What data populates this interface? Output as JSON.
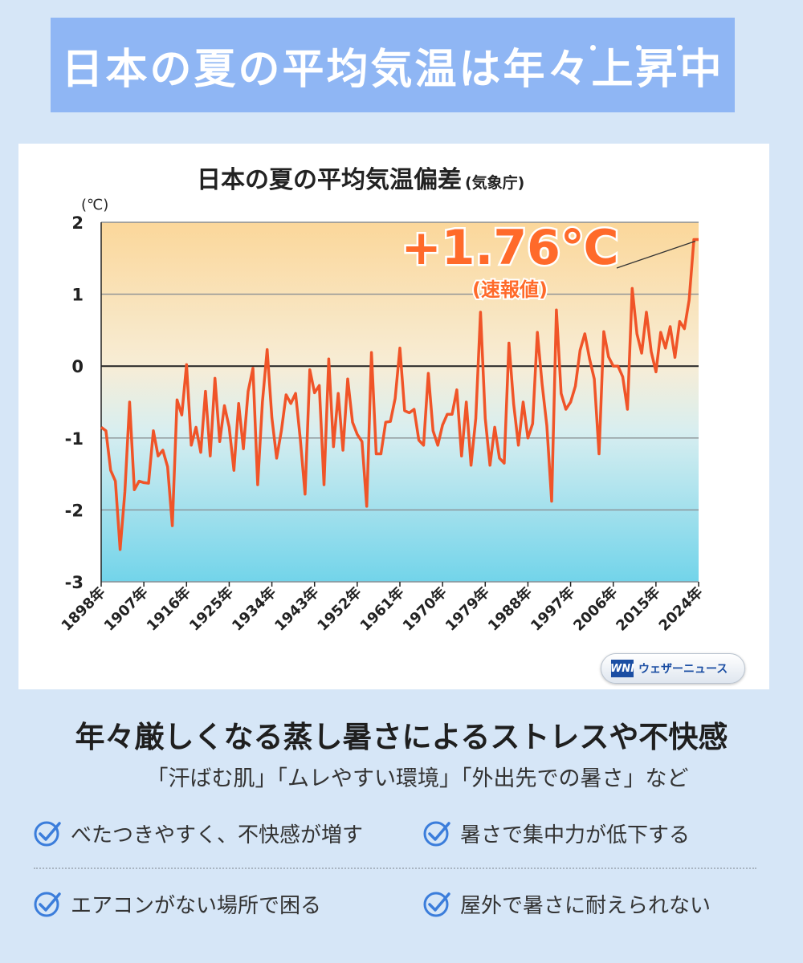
{
  "banner": {
    "title": "日本の夏の平均気温は年々上昇中"
  },
  "chart_data": {
    "type": "line",
    "title": "日本の夏の平均気温偏差",
    "title_note": "(気象庁)",
    "ylabel": "(℃)",
    "ylim": [
      -3,
      2
    ],
    "yticks": [
      2,
      1,
      0,
      -1,
      -2,
      -3
    ],
    "xlim": [
      1898,
      2024
    ],
    "xticks": [
      "1898年",
      "1907年",
      "1916年",
      "1925年",
      "1934年",
      "1943年",
      "1952年",
      "1961年",
      "1970年",
      "1979年",
      "1988年",
      "1997年",
      "2006年",
      "2015年",
      "2024年"
    ],
    "grid": true,
    "annotation": {
      "value_text": "+1.76℃",
      "note": "(速報値)",
      "year": 2024,
      "value": 1.76
    },
    "series": [
      {
        "color": "#f05428",
        "x_start": 1898,
        "values": [
          -0.85,
          -0.9,
          -1.45,
          -1.6,
          -2.55,
          -1.75,
          -0.5,
          -1.72,
          -1.6,
          -1.62,
          -1.63,
          -0.9,
          -1.25,
          -1.17,
          -1.4,
          -2.22,
          -0.47,
          -0.68,
          0.02,
          -1.1,
          -0.85,
          -1.2,
          -0.35,
          -1.25,
          -0.17,
          -1.05,
          -0.55,
          -0.85,
          -1.45,
          -0.52,
          -1.15,
          -0.35,
          -0.03,
          -1.65,
          -0.5,
          0.23,
          -0.72,
          -1.28,
          -0.9,
          -0.4,
          -0.52,
          -0.38,
          -1.02,
          -1.78,
          -0.05,
          -0.37,
          -0.27,
          -1.65,
          0.1,
          -1.12,
          -0.38,
          -1.17,
          -0.18,
          -0.78,
          -0.95,
          -1.05,
          -1.95,
          0.19,
          -1.22,
          -1.22,
          -0.78,
          -0.77,
          -0.45,
          0.25,
          -0.62,
          -0.65,
          -0.6,
          -1.03,
          -1.1,
          -0.1,
          -0.9,
          -1.1,
          -0.82,
          -0.67,
          -0.67,
          -0.33,
          -1.25,
          -0.5,
          -1.38,
          -0.73,
          0.75,
          -0.73,
          -1.38,
          -0.85,
          -1.28,
          -1.35,
          0.32,
          -0.53,
          -1.1,
          -0.5,
          -1.0,
          -0.8,
          0.47,
          -0.25,
          -0.83,
          -1.88,
          0.78,
          -0.38,
          -0.6,
          -0.5,
          -0.28,
          0.22,
          0.45,
          0.1,
          -0.18,
          -1.22,
          0.48,
          0.13,
          0.0,
          0.0,
          -0.15,
          -0.6,
          1.08,
          0.45,
          0.18,
          0.75,
          0.2,
          -0.08,
          0.47,
          0.25,
          0.55,
          0.12,
          0.62,
          0.52,
          0.92,
          1.76,
          1.76
        ]
      }
    ]
  },
  "brand": {
    "logo_text": "WNI",
    "name": "ウェザーニュース"
  },
  "subhead": "年々厳しくなる蒸し暑さによるストレスや不快感",
  "quotes": "「汗ばむ肌」「ムレやすい環境」「外出先での暑さ」など",
  "checklist": [
    "べたつきやすく、不快感が増す",
    "暑さで集中力が低下する",
    "エアコンがない場所で困る",
    "屋外で暑さに耐えられない"
  ]
}
